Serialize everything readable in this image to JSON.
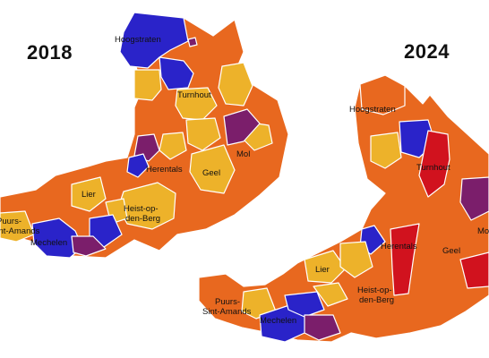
{
  "maps": [
    {
      "year": "2018",
      "labels": {
        "hoogstraten": "Hoogstraten",
        "turnhout": "Turnhout",
        "mol": "Mol",
        "herentals": "Herentals",
        "geel": "Geel",
        "lier": "Lier",
        "heist1": "Heist-op-",
        "heist2": "den-Berg",
        "puurs1": "Puurs-",
        "puurs2": "Sint-Amands",
        "mechelen": "Mechelen"
      }
    },
    {
      "year": "2024",
      "labels": {
        "hoogstraten": "Hoogstraten",
        "turnhout": "Turnhout",
        "herentals": "Herentals",
        "geel": "Geel",
        "mol": "Mo",
        "lier": "Lier",
        "heist1": "Heist-op-",
        "heist2": "den-Berg",
        "puurs1": "Puurs-",
        "puurs2": "Sint-Amands",
        "mechelen": "Mechelen"
      }
    }
  ],
  "colors": {
    "orange": "#E8681F",
    "yellow": "#EDB22A",
    "blue": "#2A23C9",
    "purple": "#7B1E6B",
    "red": "#D1121E"
  }
}
